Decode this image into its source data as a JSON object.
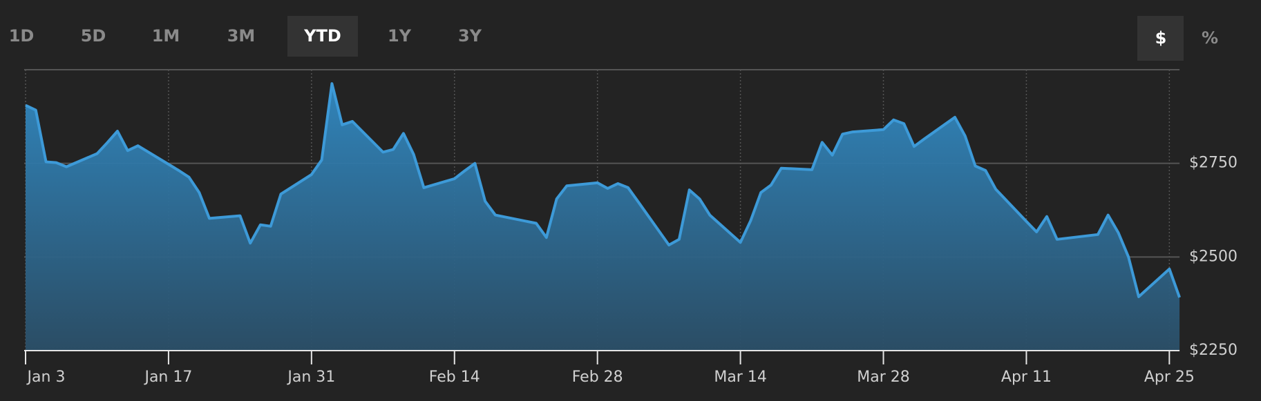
{
  "range_buttons": {
    "items": [
      "1D",
      "5D",
      "1M",
      "3M",
      "YTD",
      "1Y",
      "3Y"
    ],
    "selected": 4
  },
  "unit_buttons": {
    "items": [
      "$",
      "%"
    ],
    "selected": 0
  },
  "chart_data": {
    "type": "area",
    "x": [
      "Jan 3",
      "Jan 4",
      "Jan 5",
      "Jan 6",
      "Jan 7",
      "Jan 10",
      "Jan 11",
      "Jan 12",
      "Jan 13",
      "Jan 14",
      "Jan 18",
      "Jan 19",
      "Jan 20",
      "Jan 21",
      "Jan 24",
      "Jan 25",
      "Jan 26",
      "Jan 27",
      "Jan 28",
      "Jan 31",
      "Feb 1",
      "Feb 2",
      "Feb 3",
      "Feb 4",
      "Feb 7",
      "Feb 8",
      "Feb 9",
      "Feb 10",
      "Feb 11",
      "Feb 14",
      "Feb 15",
      "Feb 16",
      "Feb 17",
      "Feb 18",
      "Feb 22",
      "Feb 23",
      "Feb 24",
      "Feb 25",
      "Feb 28",
      "Mar 1",
      "Mar 2",
      "Mar 3",
      "Mar 4",
      "Mar 7",
      "Mar 8",
      "Mar 9",
      "Mar 10",
      "Mar 11",
      "Mar 14",
      "Mar 15",
      "Mar 16",
      "Mar 17",
      "Mar 18",
      "Mar 21",
      "Mar 22",
      "Mar 23",
      "Mar 24",
      "Mar 25",
      "Mar 28",
      "Mar 29",
      "Mar 30",
      "Mar 31",
      "Apr 1",
      "Apr 4",
      "Apr 5",
      "Apr 6",
      "Apr 7",
      "Apr 8",
      "Apr 11",
      "Apr 12",
      "Apr 13",
      "Apr 14",
      "Apr 18",
      "Apr 19",
      "Apr 20",
      "Apr 21",
      "Apr 22",
      "Apr 25",
      "Apr 26"
    ],
    "series": [
      {
        "color": "#3d9ad8",
        "values": [
          2905,
          2892,
          2754,
          2752,
          2741,
          2776,
          2805,
          2836,
          2784,
          2797,
          2731,
          2713,
          2672,
          2603,
          2610,
          2537,
          2586,
          2582,
          2668,
          2720,
          2759,
          2963,
          2853,
          2862,
          2780,
          2787,
          2830,
          2774,
          2685,
          2709,
          2730,
          2750,
          2649,
          2612,
          2590,
          2552,
          2655,
          2690,
          2698,
          2683,
          2696,
          2685,
          2647,
          2532,
          2547,
          2679,
          2655,
          2612,
          2539,
          2597,
          2672,
          2692,
          2737,
          2733,
          2806,
          2772,
          2828,
          2834,
          2840,
          2866,
          2856,
          2795,
          2815,
          2873,
          2823,
          2743,
          2731,
          2681,
          2595,
          2567,
          2608,
          2547,
          2560,
          2612,
          2565,
          2500,
          2394,
          2468,
          2392
        ]
      }
    ],
    "xticks": [
      "Jan 3",
      "Jan 17",
      "Jan 31",
      "Feb 14",
      "Feb 28",
      "Mar 14",
      "Mar 28",
      "Apr 11",
      "Apr 25"
    ],
    "ylim": [
      2250,
      3000
    ],
    "yticks": [
      {
        "value": 2250,
        "label": "$2250"
      },
      {
        "value": 2500,
        "label": "$2500"
      },
      {
        "value": 2750,
        "label": "$2750"
      }
    ],
    "grid": true
  }
}
